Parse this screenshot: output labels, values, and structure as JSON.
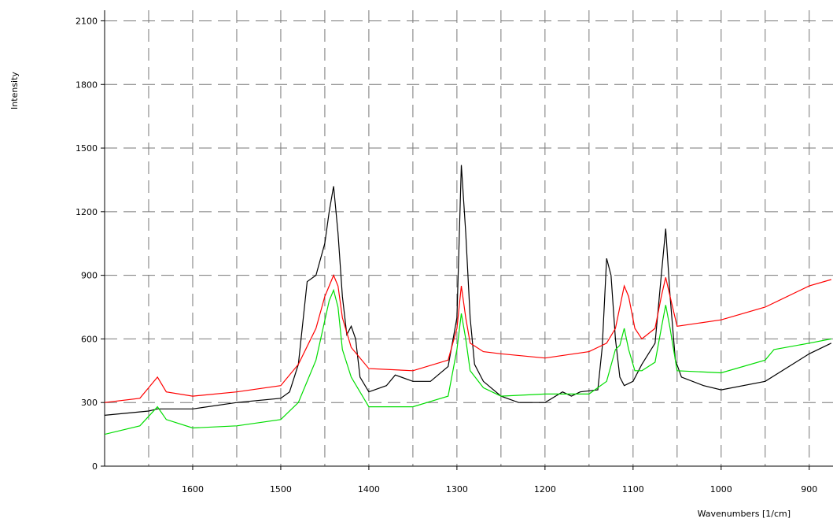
{
  "chart_data": {
    "type": "line",
    "x_label": "Wavenumbers [1/cm]",
    "y_label": "Intensity",
    "xlim": [
      1700,
      873
    ],
    "ylim": [
      0,
      2150
    ],
    "xticks": [
      1600,
      1500,
      1400,
      1300,
      1200,
      1100,
      1000,
      900
    ],
    "xgrid": [
      1650,
      1600,
      1550,
      1500,
      1450,
      1400,
      1350,
      1300,
      1250,
      1200,
      1150,
      1100,
      1050,
      1000,
      950,
      900
    ],
    "yticks": [
      0,
      300,
      600,
      900,
      1200,
      1500,
      1800,
      2100
    ],
    "grid": true,
    "series": [
      {
        "color": "#000000",
        "x": [
          1700,
          1650,
          1640,
          1600,
          1550,
          1500,
          1490,
          1480,
          1470,
          1460,
          1450,
          1445,
          1440,
          1435,
          1430,
          1425,
          1420,
          1415,
          1410,
          1400,
          1380,
          1370,
          1350,
          1330,
          1310,
          1300,
          1295,
          1290,
          1285,
          1280,
          1270,
          1250,
          1230,
          1200,
          1180,
          1170,
          1160,
          1140,
          1135,
          1130,
          1125,
          1120,
          1115,
          1110,
          1100,
          1090,
          1075,
          1068,
          1063,
          1058,
          1052,
          1045,
          1020,
          1000,
          950,
          900,
          875
        ],
        "values": [
          240,
          260,
          270,
          270,
          300,
          320,
          350,
          480,
          870,
          900,
          1050,
          1200,
          1320,
          1100,
          800,
          620,
          660,
          600,
          420,
          350,
          380,
          430,
          400,
          400,
          470,
          700,
          1420,
          1100,
          700,
          480,
          400,
          330,
          300,
          300,
          350,
          330,
          350,
          360,
          560,
          980,
          900,
          600,
          420,
          380,
          400,
          480,
          580,
          900,
          1120,
          800,
          500,
          420,
          380,
          360,
          400,
          530,
          580
        ]
      },
      {
        "color": "#ff0000",
        "x": [
          1700,
          1660,
          1640,
          1630,
          1600,
          1550,
          1500,
          1480,
          1460,
          1450,
          1440,
          1435,
          1430,
          1420,
          1400,
          1350,
          1310,
          1300,
          1295,
          1290,
          1285,
          1270,
          1250,
          1200,
          1150,
          1130,
          1120,
          1110,
          1105,
          1098,
          1090,
          1075,
          1068,
          1063,
          1058,
          1050,
          1000,
          950,
          900,
          875
        ],
        "values": [
          300,
          320,
          420,
          350,
          330,
          350,
          380,
          480,
          650,
          800,
          900,
          850,
          700,
          560,
          460,
          450,
          500,
          650,
          850,
          700,
          580,
          540,
          530,
          510,
          540,
          580,
          650,
          850,
          800,
          650,
          600,
          650,
          800,
          890,
          800,
          660,
          690,
          750,
          850,
          880
        ]
      },
      {
        "color": "#00dd00",
        "x": [
          1700,
          1660,
          1640,
          1630,
          1600,
          1550,
          1500,
          1480,
          1460,
          1445,
          1440,
          1435,
          1430,
          1420,
          1400,
          1350,
          1310,
          1300,
          1295,
          1290,
          1285,
          1270,
          1250,
          1200,
          1150,
          1130,
          1120,
          1115,
          1110,
          1105,
          1098,
          1090,
          1075,
          1068,
          1063,
          1058,
          1050,
          1000,
          950,
          940,
          900,
          875
        ],
        "values": [
          150,
          190,
          280,
          220,
          180,
          190,
          220,
          300,
          500,
          780,
          830,
          750,
          550,
          420,
          280,
          280,
          330,
          550,
          720,
          600,
          450,
          370,
          330,
          340,
          340,
          400,
          550,
          570,
          650,
          550,
          450,
          450,
          490,
          650,
          760,
          650,
          450,
          440,
          500,
          550,
          580,
          600
        ]
      }
    ]
  }
}
